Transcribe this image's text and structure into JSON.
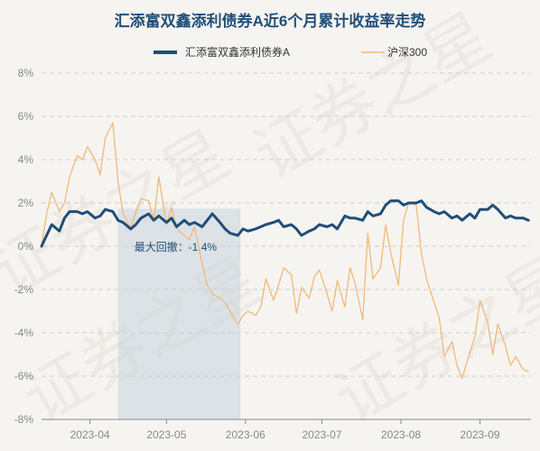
{
  "chart_data": {
    "type": "line",
    "title": "汇添富双鑫添利债券A近6个月累计收益率走势",
    "xlabel": "",
    "ylabel": "",
    "y_unit": "%",
    "ylim": [
      -8,
      8
    ],
    "y_ticks": [
      8,
      6,
      4,
      2,
      0,
      -2,
      -4,
      -6,
      -8
    ],
    "y_tick_labels": [
      "8%",
      "6%",
      "4%",
      "2%",
      "0%",
      "-2%",
      "-4%",
      "-6%",
      "-8%"
    ],
    "x_range": [
      "2023-03-13",
      "2023-09-21"
    ],
    "x_ticks": [
      "2023-04-01",
      "2023-05-01",
      "2023-06-01",
      "2023-07-01",
      "2023-08-01",
      "2023-09-01"
    ],
    "x_tick_labels": [
      "2023-04",
      "2023-05",
      "2023-06",
      "2023-07",
      "2023-08",
      "2023-09"
    ],
    "grid": "horizontal dashed",
    "legend_position": "top-center",
    "annotation": {
      "text": "最大回撤：-1.4%",
      "x_start": "2023-04-12",
      "x_end": "2023-05-30"
    },
    "series": [
      {
        "name": "汇添富双鑫添利债券A",
        "color": "#1f4e79",
        "x": [
          "2023-03-13",
          "2023-03-15",
          "2023-03-17",
          "2023-03-20",
          "2023-03-22",
          "2023-03-24",
          "2023-03-27",
          "2023-03-29",
          "2023-03-31",
          "2023-04-03",
          "2023-04-05",
          "2023-04-07",
          "2023-04-10",
          "2023-04-12",
          "2023-04-14",
          "2023-04-17",
          "2023-04-19",
          "2023-04-21",
          "2023-04-24",
          "2023-04-26",
          "2023-04-28",
          "2023-05-01",
          "2023-05-03",
          "2023-05-05",
          "2023-05-08",
          "2023-05-10",
          "2023-05-12",
          "2023-05-15",
          "2023-05-17",
          "2023-05-19",
          "2023-05-22",
          "2023-05-24",
          "2023-05-26",
          "2023-05-29",
          "2023-05-31",
          "2023-06-02",
          "2023-06-05",
          "2023-06-07",
          "2023-06-09",
          "2023-06-12",
          "2023-06-14",
          "2023-06-16",
          "2023-06-19",
          "2023-06-21",
          "2023-06-23",
          "2023-06-26",
          "2023-06-28",
          "2023-06-30",
          "2023-07-03",
          "2023-07-05",
          "2023-07-07",
          "2023-07-10",
          "2023-07-12",
          "2023-07-14",
          "2023-07-17",
          "2023-07-19",
          "2023-07-21",
          "2023-07-24",
          "2023-07-26",
          "2023-07-28",
          "2023-07-31",
          "2023-08-02",
          "2023-08-04",
          "2023-08-07",
          "2023-08-09",
          "2023-08-11",
          "2023-08-14",
          "2023-08-16",
          "2023-08-18",
          "2023-08-21",
          "2023-08-23",
          "2023-08-25",
          "2023-08-28",
          "2023-08-30",
          "2023-09-01",
          "2023-09-04",
          "2023-09-06",
          "2023-09-08",
          "2023-09-11",
          "2023-09-13",
          "2023-09-15",
          "2023-09-18",
          "2023-09-20"
        ],
        "values": [
          0.0,
          0.5,
          1.0,
          0.7,
          1.3,
          1.6,
          1.6,
          1.5,
          1.6,
          1.3,
          1.4,
          1.7,
          1.6,
          1.2,
          1.1,
          0.8,
          1.0,
          1.3,
          1.5,
          1.2,
          1.4,
          1.1,
          1.3,
          0.9,
          1.2,
          1.0,
          1.1,
          0.9,
          1.2,
          1.5,
          1.1,
          0.8,
          0.6,
          0.5,
          0.8,
          0.7,
          0.8,
          0.9,
          1.0,
          1.1,
          1.2,
          0.9,
          1.0,
          0.8,
          0.5,
          0.7,
          0.8,
          1.0,
          0.9,
          1.0,
          0.8,
          1.4,
          1.3,
          1.3,
          1.2,
          1.6,
          1.4,
          1.5,
          1.9,
          2.1,
          2.1,
          1.9,
          2.0,
          2.0,
          2.1,
          1.8,
          1.6,
          1.5,
          1.6,
          1.3,
          1.4,
          1.2,
          1.5,
          1.3,
          1.7,
          1.7,
          1.9,
          1.7,
          1.3,
          1.4,
          1.3,
          1.3,
          1.2
        ]
      },
      {
        "name": "沪深300",
        "color": "#f0b97a",
        "x": [
          "2023-03-13",
          "2023-03-15",
          "2023-03-17",
          "2023-03-20",
          "2023-03-22",
          "2023-03-24",
          "2023-03-27",
          "2023-03-29",
          "2023-03-31",
          "2023-04-03",
          "2023-04-05",
          "2023-04-07",
          "2023-04-10",
          "2023-04-12",
          "2023-04-14",
          "2023-04-17",
          "2023-04-19",
          "2023-04-21",
          "2023-04-24",
          "2023-04-26",
          "2023-04-28",
          "2023-05-01",
          "2023-05-03",
          "2023-05-05",
          "2023-05-08",
          "2023-05-10",
          "2023-05-12",
          "2023-05-15",
          "2023-05-17",
          "2023-05-19",
          "2023-05-22",
          "2023-05-24",
          "2023-05-26",
          "2023-05-29",
          "2023-05-31",
          "2023-06-02",
          "2023-06-05",
          "2023-06-07",
          "2023-06-09",
          "2023-06-12",
          "2023-06-14",
          "2023-06-16",
          "2023-06-19",
          "2023-06-21",
          "2023-06-23",
          "2023-06-26",
          "2023-06-28",
          "2023-06-30",
          "2023-07-03",
          "2023-07-05",
          "2023-07-07",
          "2023-07-10",
          "2023-07-12",
          "2023-07-14",
          "2023-07-17",
          "2023-07-19",
          "2023-07-21",
          "2023-07-24",
          "2023-07-26",
          "2023-07-28",
          "2023-07-31",
          "2023-08-02",
          "2023-08-04",
          "2023-08-07",
          "2023-08-09",
          "2023-08-11",
          "2023-08-14",
          "2023-08-16",
          "2023-08-18",
          "2023-08-21",
          "2023-08-23",
          "2023-08-25",
          "2023-08-28",
          "2023-08-30",
          "2023-09-01",
          "2023-09-04",
          "2023-09-06",
          "2023-09-08",
          "2023-09-11",
          "2023-09-13",
          "2023-09-15",
          "2023-09-18",
          "2023-09-20"
        ],
        "values": [
          0.0,
          1.5,
          2.5,
          1.6,
          2.0,
          3.2,
          4.2,
          4.0,
          4.6,
          4.0,
          3.3,
          5.0,
          5.7,
          3.0,
          1.5,
          0.8,
          1.6,
          2.2,
          2.1,
          1.2,
          3.2,
          1.0,
          1.8,
          0.8,
          0.5,
          0.3,
          0.9,
          -0.8,
          -1.8,
          -2.2,
          -2.4,
          -2.6,
          -3.0,
          -3.6,
          -3.2,
          -3.0,
          -3.2,
          -2.8,
          -1.5,
          -2.5,
          -1.8,
          -1.0,
          -1.3,
          -3.1,
          -1.9,
          -2.4,
          -1.4,
          -1.1,
          -2.2,
          -3.0,
          -1.6,
          -2.8,
          -1.0,
          -1.7,
          -3.4,
          0.6,
          -1.5,
          -1.0,
          1.0,
          -0.3,
          -1.8,
          1.2,
          2.0,
          1.9,
          -0.3,
          -1.5,
          -2.6,
          -3.3,
          -5.1,
          -4.4,
          -5.5,
          -6.1,
          -4.9,
          -4.2,
          -2.5,
          -3.5,
          -5.0,
          -3.6,
          -4.6,
          -5.5,
          -5.1,
          -5.7,
          -5.8
        ]
      }
    ]
  },
  "watermark_text": "证券之星"
}
